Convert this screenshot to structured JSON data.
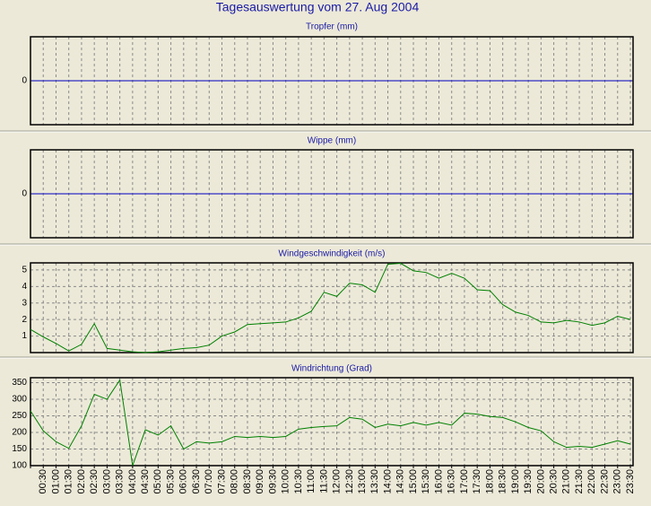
{
  "title": "Tagesauswertung vom 27. Aug 2004",
  "chart_data": [
    {
      "type": "line",
      "title": "Tropfer (mm)",
      "ylim": [
        -1,
        1
      ],
      "yticks": [
        0
      ],
      "grid_color": "#0000c0",
      "grid_dash": false
    },
    {
      "type": "line",
      "title": "Wippe (mm)",
      "ylim": [
        -1,
        1
      ],
      "yticks": [
        0
      ],
      "grid_color": "#0000c0",
      "grid_dash": false
    },
    {
      "type": "line",
      "title": "Windgeschwindigkeit (m/s)",
      "ylim": [
        0,
        5.43
      ],
      "yticks": [
        1,
        2,
        3,
        4,
        5
      ],
      "grid_color": "#8a8a8a",
      "grid_dash": true,
      "series": [
        {
          "color": "#008000",
          "values": [
            1.4,
            0.95,
            0.55,
            0.1,
            0.5,
            1.75,
            0.25,
            0.15,
            0.05,
            0,
            0.05,
            0.15,
            0.25,
            0.3,
            0.45,
            1.0,
            1.25,
            1.7,
            1.75,
            1.8,
            1.85,
            2.1,
            2.5,
            3.65,
            3.4,
            4.2,
            4.1,
            3.65,
            5.35,
            5.4,
            4.95,
            4.85,
            4.5,
            4.8,
            4.5,
            3.8,
            3.75,
            2.9,
            2.45,
            2.25,
            1.85,
            1.8,
            1.95,
            1.85,
            1.65,
            1.8,
            2.2,
            2.0
          ]
        }
      ]
    },
    {
      "type": "line",
      "title": "Windrichtung (Grad)",
      "ylim": [
        100,
        365
      ],
      "yticks": [
        100,
        150,
        200,
        250,
        300,
        350
      ],
      "grid_color": "#8a8a8a",
      "grid_dash": true,
      "categories": [
        null,
        "00:30",
        "01:00",
        "01:30",
        "02:00",
        "02:30",
        "03:00",
        "03:30",
        "04:00",
        "04:30",
        "05:00",
        "05:30",
        "06:00",
        "06:30",
        "07:00",
        "07:30",
        "08:00",
        "08:30",
        "09:00",
        "09:30",
        "10:00",
        "10:30",
        "11:00",
        "11:30",
        "12:00",
        "12:30",
        "13:00",
        "13:30",
        "14:00",
        "14:30",
        "15:00",
        "15:30",
        "16:00",
        "16:30",
        "17:00",
        "17:30",
        "18:00",
        "18:30",
        "19:00",
        "19:30",
        "20:00",
        "20:30",
        "21:00",
        "21:30",
        "22:00",
        "22:30",
        "23:00",
        "23:30"
      ],
      "series": [
        {
          "color": "#008000",
          "values": [
            265,
            205,
            172,
            152,
            220,
            315,
            300,
            358,
            100,
            208,
            192,
            220,
            150,
            172,
            168,
            172,
            188,
            185,
            188,
            185,
            188,
            210,
            215,
            218,
            220,
            245,
            240,
            215,
            225,
            220,
            230,
            222,
            230,
            222,
            258,
            255,
            248,
            245,
            232,
            215,
            205,
            172,
            155,
            158,
            155,
            165,
            175,
            165
          ]
        }
      ]
    }
  ]
}
